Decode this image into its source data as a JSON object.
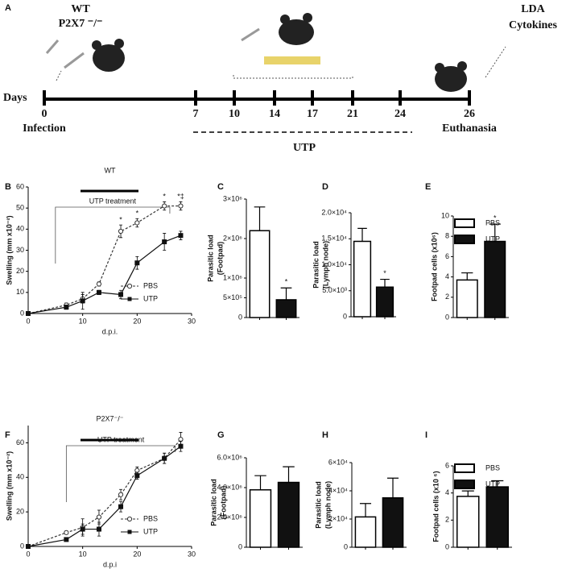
{
  "timeline": {
    "label": "A",
    "groups": [
      "WT",
      "P2X7 ⁻/⁻"
    ],
    "axis_label": "Days",
    "days": [
      0,
      7,
      10,
      14,
      17,
      21,
      24,
      26
    ],
    "start_label": "Infection",
    "end_label": "Euthanasia",
    "treatment": "UTP",
    "readouts": [
      "LDA",
      "Cytokines"
    ]
  },
  "chart_data": [
    {
      "type": "line",
      "panel": "B",
      "title": "WT",
      "xlabel": "d.p.i.",
      "ylabel": [
        "Swelling (mm x10⁻²)"
      ],
      "x": [
        0,
        7,
        10,
        13,
        17,
        20,
        25,
        28
      ],
      "xlim": [
        0,
        30
      ],
      "xticks": [
        0,
        10,
        20,
        30
      ],
      "ylim": [
        0,
        60
      ],
      "yticks": [
        0,
        10,
        20,
        30,
        40,
        50,
        60
      ],
      "series": [
        {
          "name": "PBS",
          "color": "#333333",
          "style": "dashed",
          "marker": "circle",
          "marker_fill": "#ffffff",
          "values": [
            0,
            4,
            7,
            14,
            39,
            43,
            51,
            51
          ],
          "errors": [
            0,
            1,
            2,
            1,
            3,
            2,
            2,
            2
          ]
        },
        {
          "name": "UTP",
          "color": "#111111",
          "style": "solid",
          "marker": "square",
          "marker_fill": "#111111",
          "values": [
            0,
            3,
            6,
            10,
            9,
            24,
            34,
            37
          ],
          "errors": [
            0,
            1,
            4,
            1,
            2,
            3,
            4,
            2
          ]
        }
      ],
      "treatment": {
        "text": "UTP treatment",
        "x": [
          5,
          26
        ]
      },
      "annotations": [
        {
          "x": 17,
          "text": "*"
        },
        {
          "x": 20,
          "text": "*"
        },
        {
          "x": 25,
          "text": "*"
        },
        {
          "x": 28,
          "text": "*‡"
        }
      ],
      "legend": "bottom-right"
    },
    {
      "type": "bar",
      "panel": "C",
      "ylabel": [
        "Parasitic load",
        "(Footpad)"
      ],
      "colors": [
        "#ffffff",
        "#111111"
      ],
      "values": [
        2200000,
        450000
      ],
      "errors": [
        600000,
        300000
      ],
      "ylim": [
        0,
        3000000
      ],
      "yticks": [
        0,
        {
          "value": 500000,
          "label": "5×10⁵"
        },
        {
          "value": 1000000,
          "label": "1×10⁶"
        },
        {
          "value": 2000000,
          "label": "2×10⁶"
        },
        {
          "value": 3000000,
          "label": "3×10⁶"
        }
      ],
      "annotations": [
        {
          "index": 1,
          "text": "*"
        }
      ]
    },
    {
      "type": "bar",
      "panel": "D",
      "ylabel": [
        "Parasitic load",
        "(Lymph node)"
      ],
      "colors": [
        "#ffffff",
        "#111111"
      ],
      "values": [
        14500,
        5700
      ],
      "errors": [
        2500,
        1500
      ],
      "ylim": [
        0,
        20000
      ],
      "yticks": [
        0,
        {
          "value": 5000,
          "label": "5.0×10³"
        },
        {
          "value": 10000,
          "label": "1.0×10⁴"
        },
        {
          "value": 15000,
          "label": "1.5×10⁴"
        },
        {
          "value": 20000,
          "label": "2.0×10⁴"
        }
      ],
      "annotations": [
        {
          "index": 1,
          "text": "*"
        }
      ]
    },
    {
      "type": "bar",
      "panel": "E",
      "ylabel": [
        "Footpad cells (x10⁶)"
      ],
      "categories": [
        "PBS",
        "UTP"
      ],
      "colors": [
        "#ffffff",
        "#111111"
      ],
      "values": [
        3.7,
        7.5
      ],
      "errors": [
        0.7,
        1.7
      ],
      "ylim": [
        0,
        10
      ],
      "yticks": [
        0,
        2,
        4,
        6,
        8,
        10
      ],
      "annotations": [
        {
          "index": 1,
          "text": "*"
        }
      ],
      "legend": "top-right"
    },
    {
      "type": "line",
      "panel": "F",
      "title": "P2X7⁻/⁻",
      "xlabel": "d.p.i",
      "ylabel": [
        "Swelling (mm x10⁻²)"
      ],
      "x": [
        0,
        7,
        10,
        13,
        17,
        20,
        25,
        28
      ],
      "xlim": [
        0,
        30
      ],
      "xticks": [
        0,
        10,
        20,
        30
      ],
      "ylim": [
        0,
        70
      ],
      "yticks": [
        0,
        20,
        40,
        60
      ],
      "series": [
        {
          "name": "PBS",
          "color": "#333333",
          "style": "dashed",
          "marker": "circle",
          "marker_fill": "#ffffff",
          "values": [
            0,
            8,
            11,
            17,
            30,
            44,
            51,
            62
          ],
          "errors": [
            0,
            1,
            5,
            4,
            3,
            2,
            3,
            4
          ]
        },
        {
          "name": "UTP",
          "color": "#111111",
          "style": "solid",
          "marker": "square",
          "marker_fill": "#111111",
          "values": [
            0,
            4,
            10,
            10,
            23,
            41,
            51,
            58
          ],
          "errors": [
            0,
            1,
            3,
            4,
            3,
            2,
            3,
            3
          ]
        }
      ],
      "treatment": {
        "text": "UTP treatment",
        "x": [
          7,
          27
        ]
      },
      "legend": "bottom-right"
    },
    {
      "type": "bar",
      "panel": "G",
      "ylabel": [
        "Parasitic load",
        "(Footpad)"
      ],
      "colors": [
        "#ffffff",
        "#111111"
      ],
      "values": [
        3850000,
        4350000
      ],
      "errors": [
        950000,
        1050000
      ],
      "ylim": [
        0,
        6000000
      ],
      "yticks": [
        0,
        {
          "value": 2000000,
          "label": "2.0×10⁶"
        },
        {
          "value": 4000000,
          "label": "4.0×10⁶"
        },
        {
          "value": 6000000,
          "label": "6.0×10⁶"
        }
      ]
    },
    {
      "type": "bar",
      "panel": "H",
      "ylabel": [
        "Parasitic load",
        "(Lymph node)"
      ],
      "colors": [
        "#ffffff",
        "#111111"
      ],
      "values": [
        21500,
        35000
      ],
      "errors": [
        9500,
        14000
      ],
      "ylim": [
        0,
        60000
      ],
      "yticks": [
        0,
        {
          "value": 20000,
          "label": "2×10⁴"
        },
        {
          "value": 40000,
          "label": "4×10⁴"
        },
        {
          "value": 60000,
          "label": "6×10⁴"
        }
      ]
    },
    {
      "type": "bar",
      "panel": "I",
      "ylabel": [
        "Footpad cells (x10 ⁶)"
      ],
      "categories": [
        "PBS",
        "UTP"
      ],
      "colors": [
        "#ffffff",
        "#111111"
      ],
      "values": [
        3.75,
        4.45
      ],
      "errors": [
        0.4,
        0.45
      ],
      "ylim": [
        0,
        6
      ],
      "yticks": [
        0,
        2,
        4,
        6
      ],
      "legend": "top-right"
    }
  ]
}
